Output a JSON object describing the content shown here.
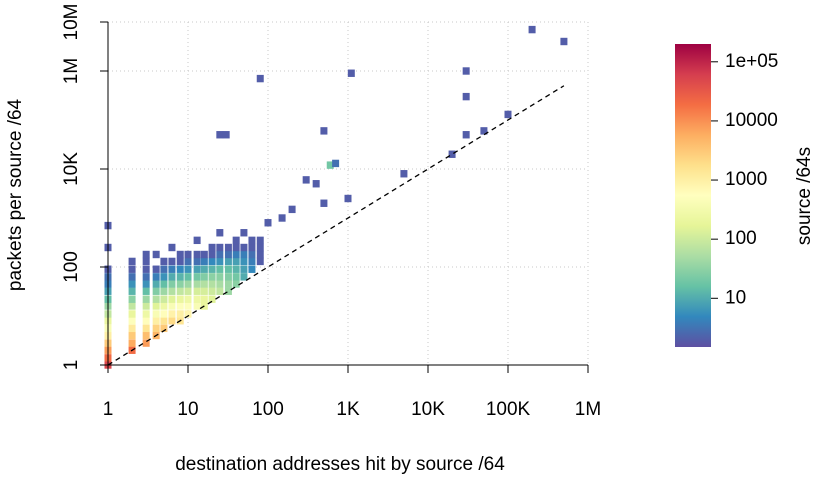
{
  "chart_data": {
    "type": "heatmap",
    "x_label": "destination addresses hit by source /64",
    "y_label": "packets per source /64",
    "log_x": true,
    "log_y": true,
    "grid": true,
    "xlim": [
      1,
      1000000
    ],
    "xticks": [
      1,
      10,
      100,
      {
        "value": 1000,
        "label": "1K"
      },
      {
        "value": 10000,
        "label": "10K"
      },
      {
        "value": 100000,
        "label": "100K"
      },
      {
        "value": 1000000,
        "label": "1M"
      }
    ],
    "ylim": [
      1,
      10000000
    ],
    "yticks": [
      1,
      100,
      {
        "value": 10000,
        "label": "10K"
      },
      {
        "value": 1000000,
        "label": "1M"
      },
      {
        "value": 10000000,
        "label": "10M"
      }
    ],
    "palette": [
      "#5e4fa2",
      "#3288bd",
      "#66c2a5",
      "#abdda4",
      "#e6f598",
      "#ffffbf",
      "#fee08b",
      "#fdae61",
      "#f46d43",
      "#d53e4f",
      "#9e0142"
    ],
    "colorbar": {
      "title": "source /64s",
      "lim": [
        1.5,
        200000
      ],
      "ticks": [
        10,
        100,
        1000,
        10000,
        {
          "value": 100000,
          "label": "1e+05"
        }
      ]
    },
    "reference_line": {
      "x": [
        1,
        500000
      ],
      "y": [
        1,
        500000
      ]
    },
    "cells": {
      "x": [
        1,
        1,
        1,
        1,
        1,
        1,
        1,
        1,
        1,
        1,
        1,
        1,
        1,
        1,
        1,
        1,
        2,
        2,
        2,
        2,
        2,
        2,
        2,
        2,
        2,
        2,
        2,
        2,
        2,
        3,
        3,
        3,
        3,
        3,
        3,
        3,
        3,
        3,
        3,
        3,
        3,
        3,
        4,
        4,
        4,
        4,
        4,
        4,
        4,
        4,
        4,
        4,
        4,
        5,
        5,
        5,
        5,
        5,
        5,
        5,
        5,
        5,
        5,
        6.3,
        6.3,
        6.3,
        6.3,
        6.3,
        6.3,
        6.3,
        6.3,
        6.3,
        6.3,
        8,
        8,
        8,
        8,
        8,
        8,
        8,
        8,
        8,
        8,
        10,
        10,
        10,
        10,
        10,
        10,
        10,
        10,
        10,
        13,
        13,
        13,
        13,
        13,
        13,
        13,
        13,
        13,
        16,
        16,
        16,
        16,
        16,
        16,
        16,
        16,
        20,
        20,
        20,
        20,
        20,
        20,
        20,
        20,
        25,
        25,
        25,
        25,
        25,
        25,
        25,
        25,
        32,
        32,
        32,
        32,
        32,
        32,
        32,
        40,
        40,
        40,
        40,
        40,
        40,
        40,
        50,
        50,
        50,
        50,
        50,
        50,
        63,
        63,
        63,
        63,
        63,
        80,
        80,
        80,
        80,
        80,
        1100,
        25,
        30,
        500,
        600,
        700,
        300,
        400,
        1000,
        5000,
        30000,
        30000,
        30000,
        50000,
        20000,
        100000,
        200000,
        500000,
        150,
        200,
        100,
        500
      ],
      "y": [
        1,
        1.4,
        2,
        2.8,
        4,
        5.6,
        8,
        11,
        16,
        22,
        32,
        45,
        63,
        90,
        250,
        700,
        2,
        2.8,
        4,
        5.6,
        8,
        11,
        16,
        22,
        32,
        45,
        63,
        90,
        130,
        2.8,
        4,
        5.6,
        8,
        11,
        16,
        22,
        32,
        45,
        63,
        90,
        130,
        180,
        4,
        5.6,
        8,
        11,
        16,
        22,
        32,
        45,
        63,
        90,
        180,
        5.6,
        8,
        11,
        16,
        22,
        32,
        45,
        63,
        90,
        130,
        8,
        11,
        16,
        22,
        32,
        45,
        63,
        90,
        130,
        250,
        8,
        11,
        16,
        22,
        32,
        45,
        63,
        90,
        130,
        180,
        11,
        16,
        22,
        32,
        45,
        63,
        90,
        130,
        180,
        16,
        22,
        32,
        45,
        63,
        90,
        130,
        180,
        350,
        16,
        22,
        32,
        45,
        63,
        90,
        130,
        180,
        22,
        32,
        45,
        63,
        90,
        130,
        180,
        250,
        32,
        45,
        63,
        90,
        130,
        180,
        250,
        500,
        32,
        45,
        63,
        90,
        130,
        180,
        250,
        45,
        63,
        90,
        130,
        180,
        250,
        350,
        63,
        90,
        130,
        180,
        250,
        500,
        90,
        130,
        180,
        250,
        350,
        130,
        180,
        250,
        350,
        700000,
        900000,
        50000,
        50000,
        60000,
        12000,
        13000,
        6000,
        5000,
        2500,
        8000,
        1000000,
        300000,
        50000,
        60000,
        20000,
        130000,
        7000000,
        4000000,
        1000,
        1500,
        800,
        2000
      ],
      "count": [
        50000,
        20000,
        8000,
        3000,
        1000,
        400,
        200,
        80,
        40,
        15,
        8,
        4,
        3,
        2,
        2,
        2,
        20000,
        6000,
        3000,
        1200,
        500,
        200,
        80,
        30,
        12,
        6,
        3,
        2,
        2,
        8000,
        4000,
        1500,
        600,
        250,
        100,
        40,
        15,
        6,
        3,
        2,
        2,
        2,
        5000,
        2500,
        1000,
        400,
        150,
        60,
        25,
        10,
        4,
        2,
        2,
        3000,
        1500,
        600,
        250,
        100,
        40,
        15,
        6,
        3,
        2,
        2000,
        900,
        400,
        150,
        60,
        25,
        10,
        4,
        2,
        2,
        1500,
        1000,
        500,
        200,
        80,
        30,
        12,
        5,
        2,
        2,
        800,
        500,
        250,
        100,
        40,
        15,
        6,
        3,
        2,
        400,
        250,
        120,
        50,
        20,
        8,
        3,
        2,
        2,
        200,
        200,
        120,
        60,
        25,
        10,
        4,
        2,
        150,
        100,
        60,
        30,
        12,
        5,
        2,
        2,
        80,
        50,
        30,
        15,
        6,
        3,
        2,
        2,
        40,
        40,
        25,
        15,
        8,
        3,
        2,
        30,
        20,
        12,
        8,
        4,
        2,
        2,
        10,
        8,
        6,
        4,
        2,
        2,
        5,
        4,
        3,
        2,
        2,
        2,
        2,
        2,
        2,
        2,
        2,
        2,
        2,
        2,
        20,
        3,
        2,
        2,
        2,
        2,
        2,
        2,
        2,
        2,
        2,
        2,
        2,
        2,
        2,
        2,
        2,
        2
      ]
    }
  }
}
